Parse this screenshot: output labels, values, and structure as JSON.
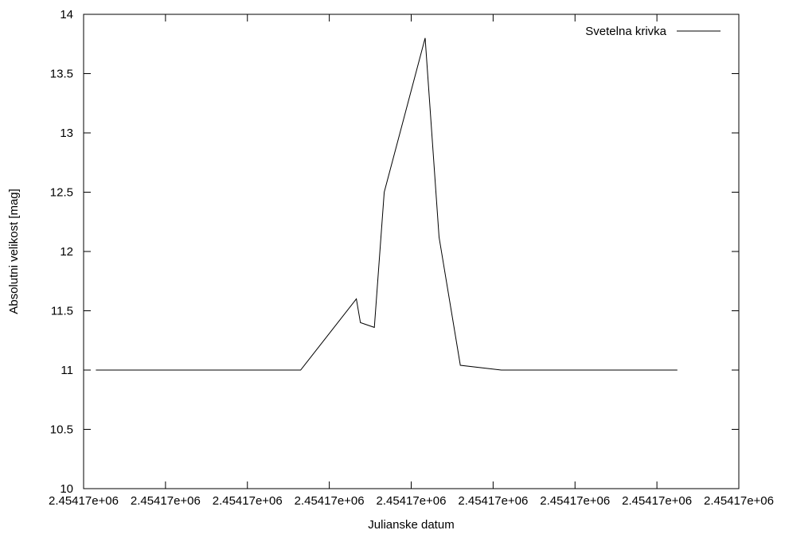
{
  "chart_data": {
    "type": "line",
    "title": "",
    "xlabel": "Julianske datum",
    "ylabel": "Absolutni velikost [mag]",
    "xlim": [
      0,
      8
    ],
    "ylim": [
      10,
      14
    ],
    "grid": false,
    "legend_position": "top-right",
    "x_tick_labels": [
      "2.45417e+06",
      "2.45417e+06",
      "2.45417e+06",
      "2.45417e+06",
      "2.45417e+06",
      "2.45417e+06",
      "2.45417e+06",
      "2.45417e+06",
      "2.45417e+06"
    ],
    "y_ticks": [
      10,
      10.5,
      11,
      11.5,
      12,
      12.5,
      13,
      13.5,
      14
    ],
    "y_tick_labels": [
      "10",
      "10.5",
      "11",
      "11.5",
      "12",
      "12.5",
      "13",
      "13.5",
      "14"
    ],
    "series": [
      {
        "name": "Svetelna krivka",
        "color": "#000000",
        "x": [
          0.15,
          2.65,
          3.33,
          3.38,
          3.55,
          3.67,
          4.17,
          4.34,
          4.6,
          5.1,
          7.25
        ],
        "y": [
          11.0,
          11.0,
          11.6,
          11.4,
          11.36,
          12.5,
          13.8,
          12.12,
          11.04,
          11.0,
          11.0
        ]
      }
    ]
  }
}
